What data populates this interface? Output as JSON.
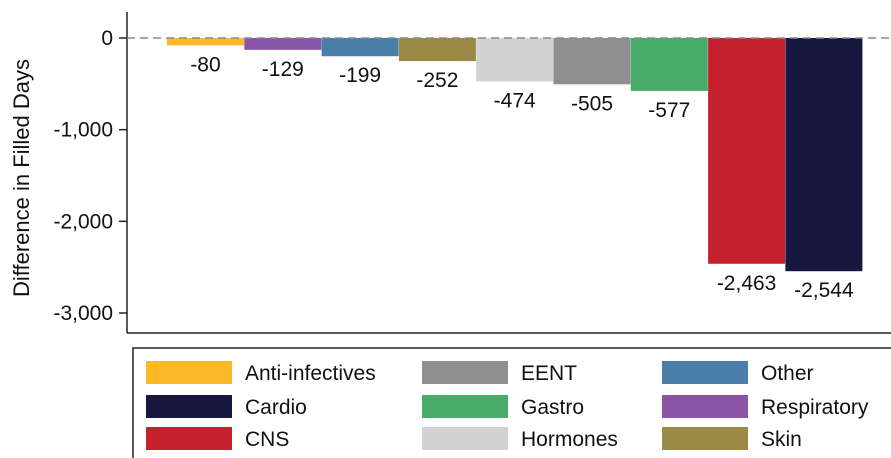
{
  "chart_data": {
    "type": "bar",
    "ylabel": "Difference in Filled Days",
    "yticks": [
      0,
      -1000,
      -2000,
      -3000
    ],
    "ytick_labels": [
      "0",
      "-1,000",
      "-2,000",
      "-3,000"
    ],
    "ylim": [
      -3200,
      250
    ],
    "reference_line": 0,
    "categories": [
      "Anti-infectives",
      "Respiratory",
      "Other",
      "Skin",
      "Hormones",
      "EENT",
      "Gastro",
      "CNS",
      "Cardio"
    ],
    "values": [
      -80,
      -129,
      -199,
      -252,
      -474,
      -505,
      -577,
      -2463,
      -2544
    ],
    "value_labels": [
      "-80",
      "-129",
      "-199",
      "-252",
      "-474",
      "-505",
      "-577",
      "-2,463",
      "-2,544"
    ],
    "colors": {
      "Anti-infectives": "#fdb827",
      "Respiratory": "#8a55a6",
      "Other": "#4a7ea8",
      "Skin": "#9a8a45",
      "Hormones": "#d2d2d2",
      "EENT": "#8f8f8f",
      "Gastro": "#4aaa6a",
      "CNS": "#c4202e",
      "Cardio": "#161840"
    },
    "legend": {
      "placement": "bottom",
      "items": [
        "Anti-infectives",
        "EENT",
        "Other",
        "Cardio",
        "Gastro",
        "Respiratory",
        "CNS",
        "Hormones",
        "Skin"
      ]
    },
    "grid": false
  }
}
